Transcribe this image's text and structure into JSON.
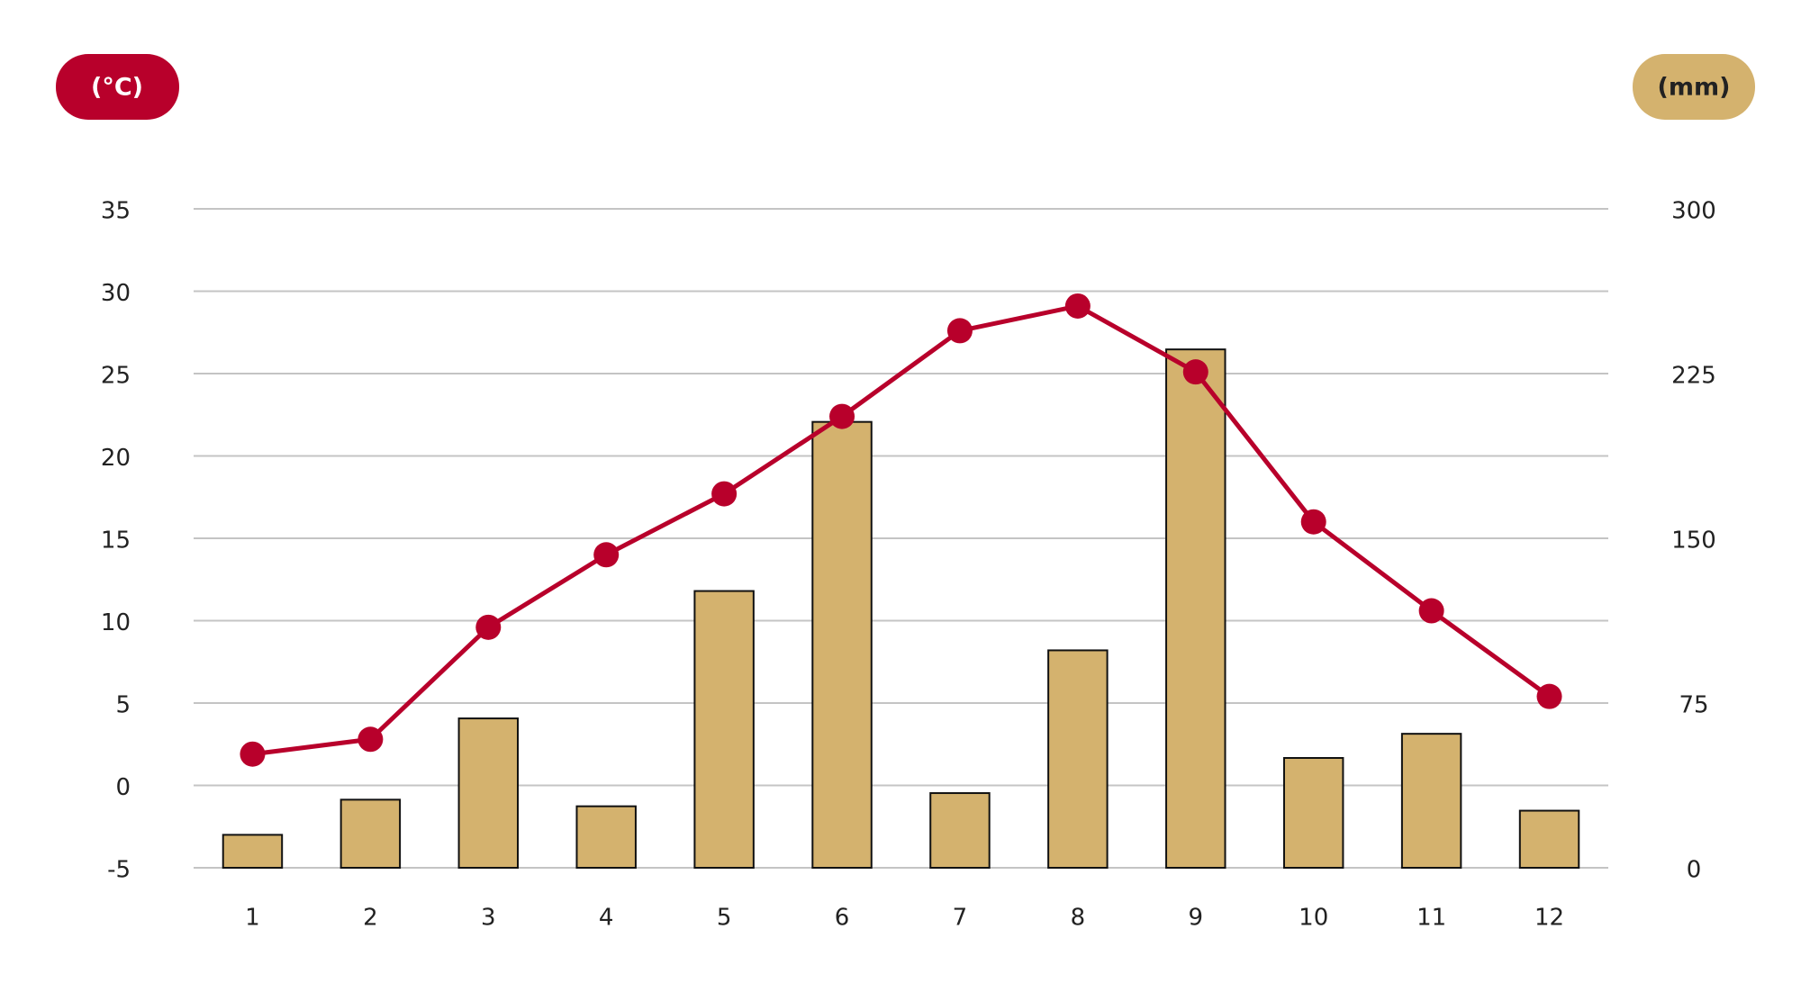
{
  "chart_data": {
    "type": "combo",
    "ylabel": "(°C)",
    "y2label": "(mm)",
    "categories": [
      "1",
      "2",
      "3",
      "4",
      "5",
      "6",
      "7",
      "8",
      "9",
      "10",
      "11",
      "12"
    ],
    "series": [
      {
        "type": "bar",
        "axis": "y2",
        "color": "#d4b26e",
        "values": [
          15,
          31,
          68,
          28,
          126,
          203,
          34,
          99,
          236,
          50,
          61,
          26
        ]
      },
      {
        "type": "line",
        "axis": "y",
        "color": "#b8002b",
        "values": [
          1.9,
          2.8,
          9.6,
          14.0,
          17.7,
          22.4,
          27.6,
          29.1,
          25.1,
          16.0,
          10.6,
          5.4
        ]
      }
    ],
    "ylim": [
      -5,
      35
    ],
    "yticks": [
      -5,
      0,
      5,
      10,
      15,
      20,
      25,
      30,
      35
    ],
    "y2lim": [
      0,
      300
    ],
    "y2ticks": [
      0,
      75,
      150,
      225,
      300
    ],
    "grid": true
  }
}
